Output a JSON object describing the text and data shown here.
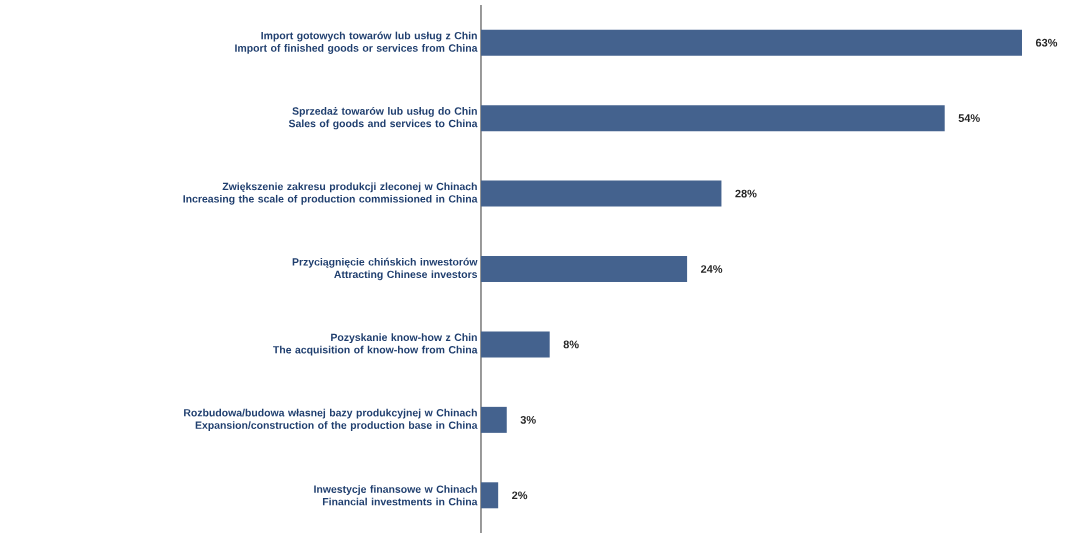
{
  "chart_data": {
    "type": "bar",
    "orientation": "horizontal",
    "categories": [
      "Import gotowych towarów lub usług z Chin\nImport of finished goods or services from China",
      "Sprzedaż towarów lub usług do Chin\nSales of goods and services to China",
      "Zwiększenie zakresu produkcji zleconej w Chinach\nIncreasing the scale of production commissioned in China",
      "Przyciągnięcie chińskich inwestorów\nAttracting Chinese investors",
      "Pozyskanie know-how z Chin\nThe acquisition of know-how from China",
      "Rozbudowa/budowa własnej bazy produkcyjnej w Chinach\nExpansion/construction of the production base in China",
      "Inwestycje finansowe w Chinach\nFinancial investments in China"
    ],
    "values": [
      63,
      54,
      28,
      24,
      8,
      3,
      2
    ],
    "value_labels": [
      "63%",
      "54%",
      "28%",
      "24%",
      "8%",
      "3%",
      "2%"
    ],
    "color": "#44628e"
  }
}
